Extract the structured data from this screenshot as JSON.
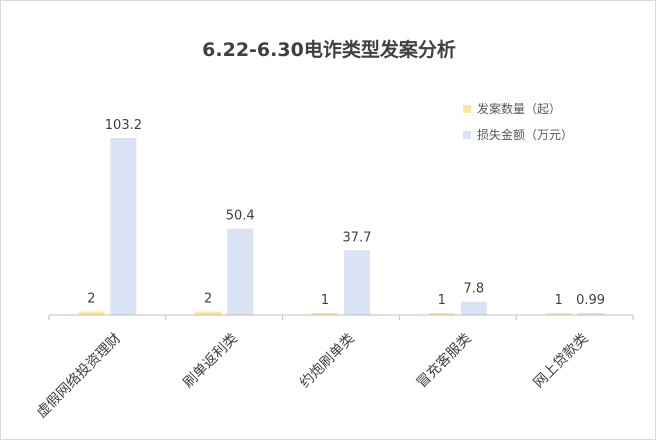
{
  "chart_data": {
    "type": "bar",
    "title": "6.22-6.30电诈类型发案分析",
    "categories": [
      "虚假网络投资理财",
      "刷单返利类",
      "约炮刷单类",
      "冒充客服类",
      "网上贷款类"
    ],
    "series": [
      {
        "name": "发案数量（起）",
        "values": [
          2,
          2,
          1,
          1,
          1
        ],
        "labels": [
          "2",
          "2",
          "1",
          "1",
          "1"
        ],
        "color": "#FFE699"
      },
      {
        "name": "损失金额（万元）",
        "values": [
          103.2,
          50.4,
          37.7,
          7.8,
          0.99
        ],
        "labels": [
          "103.2",
          "50.4",
          "37.7",
          "7.8",
          "0.99"
        ],
        "color": "#DAE3F3"
      }
    ],
    "ylim": [
      0,
      110
    ],
    "grid": false,
    "legend_position": "top-right"
  }
}
